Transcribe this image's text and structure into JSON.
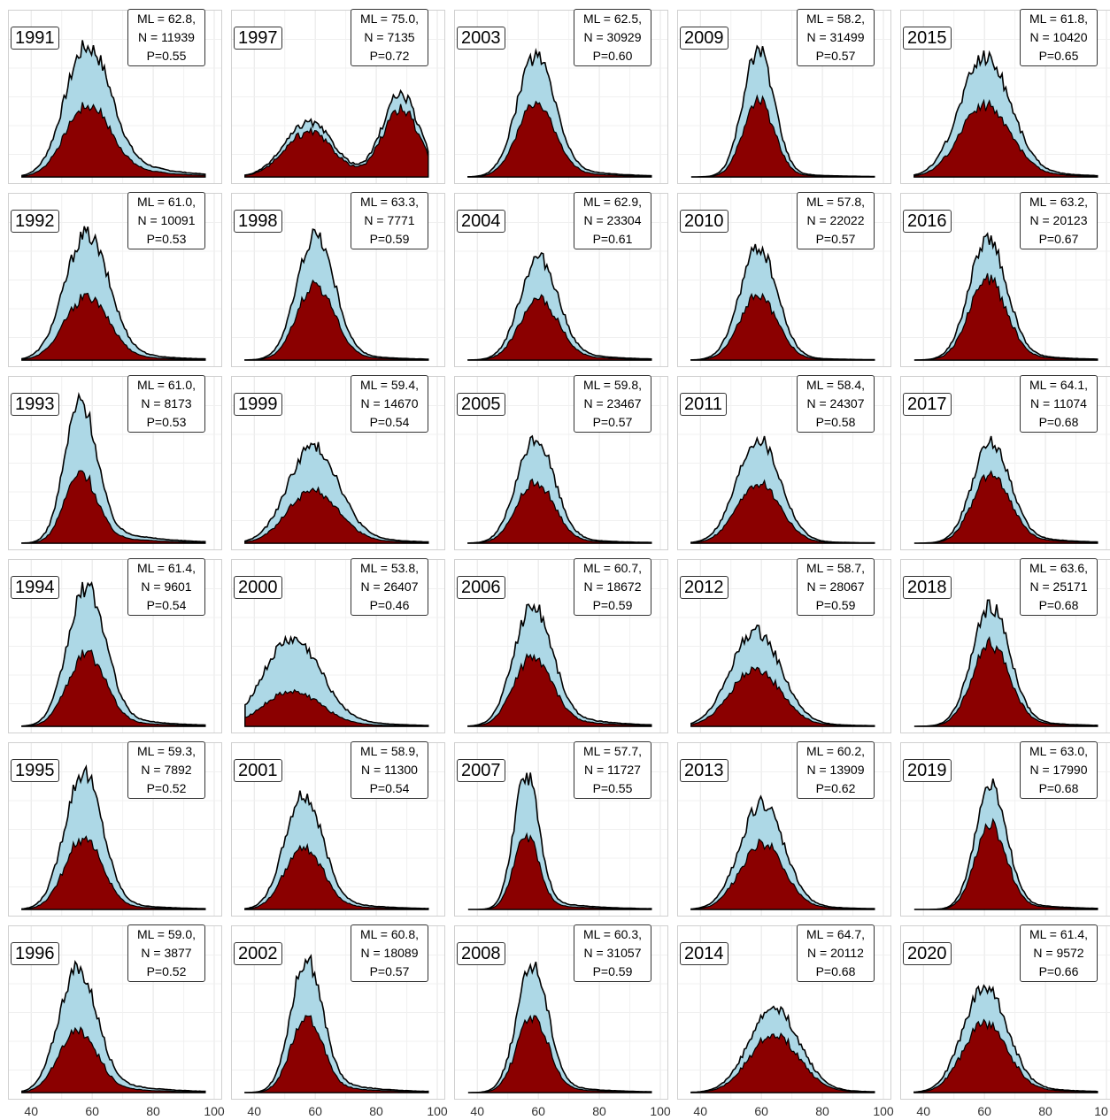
{
  "chart_data": {
    "type": "area",
    "description_layout": "small multiples, 6 rows x 5 columns, years 1991-2020",
    "x_ticks": [
      "40",
      "60",
      "80",
      "100"
    ],
    "last_column_x_ticks": [
      "40",
      "60",
      "80",
      "10"
    ],
    "xlim": [
      35,
      100
    ],
    "colors": {
      "outer": "#add8e6",
      "inner": "#8b0000",
      "line": "#000000"
    },
    "panels": [
      {
        "year": "1991",
        "ml": "ML = 62.8,",
        "n": "N = 11939",
        "p": "P=0.55",
        "mode": 58,
        "spread": 7,
        "tail": 0.35,
        "ratio": 0.55,
        "peak": 0.92
      },
      {
        "year": "1992",
        "ml": "ML = 61.0,",
        "n": "N = 10091",
        "p": "P=0.53",
        "mode": 58,
        "spread": 7,
        "tail": 0.15,
        "ratio": 0.5,
        "peak": 0.9
      },
      {
        "year": "1993",
        "ml": "ML = 61.0,",
        "n": "N = 8173",
        "p": "P=0.53",
        "mode": 56,
        "spread": 5,
        "tail": 0.2,
        "ratio": 0.5,
        "peak": 1.0
      },
      {
        "year": "1994",
        "ml": "ML = 61.4,",
        "n": "N = 9601",
        "p": "P=0.54",
        "mode": 58,
        "spread": 6,
        "tail": 0.15,
        "ratio": 0.52,
        "peak": 0.97
      },
      {
        "year": "1995",
        "ml": "ML = 59.3,",
        "n": "N = 7892",
        "p": "P=0.52",
        "mode": 57,
        "spread": 6,
        "tail": 0.1,
        "ratio": 0.52,
        "peak": 0.96
      },
      {
        "year": "1996",
        "ml": "ML = 59.0,",
        "n": "N = 3877",
        "p": "P=0.52",
        "mode": 55,
        "spread": 6,
        "tail": 0.2,
        "ratio": 0.5,
        "peak": 0.88
      },
      {
        "year": "1997",
        "ml": "ML = 75.0,",
        "n": "N = 7135",
        "p": "P=0.72",
        "mode": 88,
        "spread": 6,
        "tail": 0.0,
        "ratio": 0.82,
        "peak": 0.58,
        "second_mode": 58,
        "second_peak": 0.38
      },
      {
        "year": "1998",
        "ml": "ML = 63.3,",
        "n": "N = 7771",
        "p": "P=0.59",
        "mode": 60,
        "spread": 6,
        "tail": 0.1,
        "ratio": 0.6,
        "peak": 0.88
      },
      {
        "year": "1999",
        "ml": "ML = 59.4,",
        "n": "N = 14670",
        "p": "P=0.54",
        "mode": 59,
        "spread": 8,
        "tail": 0.2,
        "ratio": 0.55,
        "peak": 0.68
      },
      {
        "year": "2000",
        "ml": "ML = 53.8,",
        "n": "N = 26407",
        "p": "P=0.46",
        "mode": 52,
        "spread": 9,
        "tail": 0.25,
        "ratio": 0.4,
        "peak": 0.6
      },
      {
        "year": "2001",
        "ml": "ML = 58.9,",
        "n": "N = 11300",
        "p": "P=0.54",
        "mode": 56,
        "spread": 6,
        "tail": 0.15,
        "ratio": 0.55,
        "peak": 0.8
      },
      {
        "year": "2002",
        "ml": "ML = 60.8,",
        "n": "N = 18089",
        "p": "P=0.57",
        "mode": 57,
        "spread": 5,
        "tail": 0.15,
        "ratio": 0.57,
        "peak": 0.92
      },
      {
        "year": "2003",
        "ml": "ML = 62.5,",
        "n": "N = 30929",
        "p": "P=0.60",
        "mode": 59,
        "spread": 6,
        "tail": 0.15,
        "ratio": 0.6,
        "peak": 0.85
      },
      {
        "year": "2004",
        "ml": "ML = 62.9,",
        "n": "N = 23304",
        "p": "P=0.61",
        "mode": 60,
        "spread": 6,
        "tail": 0.15,
        "ratio": 0.6,
        "peak": 0.72
      },
      {
        "year": "2005",
        "ml": "ML = 59.8,",
        "n": "N = 23467",
        "p": "P=0.57",
        "mode": 59,
        "spread": 6,
        "tail": 0.1,
        "ratio": 0.58,
        "peak": 0.72
      },
      {
        "year": "2006",
        "ml": "ML = 60.7,",
        "n": "N = 18672",
        "p": "P=0.59",
        "mode": 58,
        "spread": 6,
        "tail": 0.2,
        "ratio": 0.58,
        "peak": 0.82
      },
      {
        "year": "2007",
        "ml": "ML = 57.7,",
        "n": "N = 11727",
        "p": "P=0.55",
        "mode": 56,
        "spread": 4,
        "tail": 0.1,
        "ratio": 0.55,
        "peak": 0.92
      },
      {
        "year": "2008",
        "ml": "ML = 60.3,",
        "n": "N = 31057",
        "p": "P=0.59",
        "mode": 58,
        "spread": 5,
        "tail": 0.1,
        "ratio": 0.6,
        "peak": 0.88
      },
      {
        "year": "2009",
        "ml": "ML = 58.2,",
        "n": "N = 31499",
        "p": "P=0.57",
        "mode": 59,
        "spread": 5,
        "tail": 0.05,
        "ratio": 0.6,
        "peak": 0.88
      },
      {
        "year": "2010",
        "ml": "ML = 57.8,",
        "n": "N = 22022",
        "p": "P=0.57",
        "mode": 59,
        "spread": 6,
        "tail": 0.05,
        "ratio": 0.58,
        "peak": 0.78
      },
      {
        "year": "2011",
        "ml": "ML = 58.4,",
        "n": "N = 24307",
        "p": "P=0.58",
        "mode": 59,
        "spread": 7,
        "tail": 0.05,
        "ratio": 0.58,
        "peak": 0.72
      },
      {
        "year": "2012",
        "ml": "ML = 58.7,",
        "n": "N = 28067",
        "p": "P=0.59",
        "mode": 58,
        "spread": 8,
        "tail": 0.1,
        "ratio": 0.6,
        "peak": 0.68
      },
      {
        "year": "2013",
        "ml": "ML = 60.2,",
        "n": "N = 13909",
        "p": "P=0.62",
        "mode": 60,
        "spread": 7,
        "tail": 0.1,
        "ratio": 0.62,
        "peak": 0.76
      },
      {
        "year": "2014",
        "ml": "ML = 64.7,",
        "n": "N = 20112",
        "p": "P=0.68",
        "mode": 64,
        "spread": 8,
        "tail": 0.1,
        "ratio": 0.68,
        "peak": 0.58
      },
      {
        "year": "2015",
        "ml": "ML = 61.8,",
        "n": "N = 10420",
        "p": "P=0.65",
        "mode": 60,
        "spread": 8,
        "tail": 0.15,
        "ratio": 0.6,
        "peak": 0.85
      },
      {
        "year": "2016",
        "ml": "ML = 63.2,",
        "n": "N = 20123",
        "p": "P=0.67",
        "mode": 61,
        "spread": 6,
        "tail": 0.1,
        "ratio": 0.67,
        "peak": 0.85
      },
      {
        "year": "2017",
        "ml": "ML = 64.1,",
        "n": "N = 11074",
        "p": "P=0.68",
        "mode": 62,
        "spread": 6,
        "tail": 0.15,
        "ratio": 0.68,
        "peak": 0.72
      },
      {
        "year": "2018",
        "ml": "ML = 63.6,",
        "n": "N = 25171",
        "p": "P=0.68",
        "mode": 62,
        "spread": 6,
        "tail": 0.1,
        "ratio": 0.68,
        "peak": 0.85
      },
      {
        "year": "2019",
        "ml": "ML = 63.0,",
        "n": "N = 17990",
        "p": "P=0.68",
        "mode": 62,
        "spread": 5,
        "tail": 0.1,
        "ratio": 0.68,
        "peak": 0.88
      },
      {
        "year": "2020",
        "ml": "ML = 61.4,",
        "n": "N = 9572",
        "p": "P=0.66",
        "mode": 60,
        "spread": 7,
        "tail": 0.15,
        "ratio": 0.66,
        "peak": 0.72
      }
    ]
  }
}
